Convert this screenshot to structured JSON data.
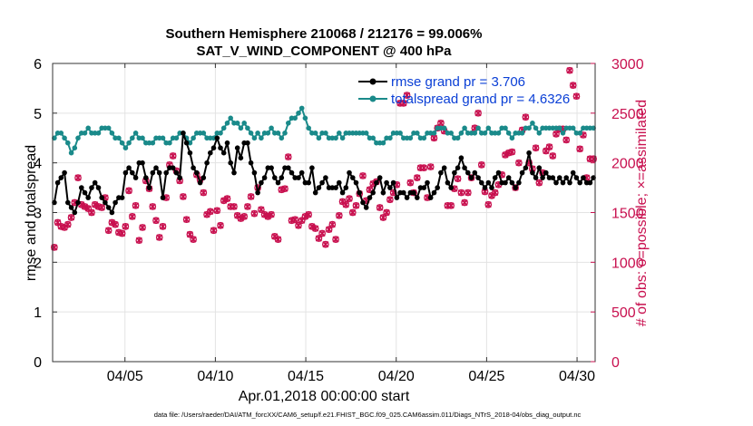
{
  "chart_data": {
    "type": "line",
    "title_line1": "Southern Hemisphere 210068 / 212176 = 99.006%",
    "title_line2": "SAT_V_WIND_COMPONENT @ 400 hPa",
    "xlabel": "Apr.01,2018 00:00:00 start",
    "ylabel_left": "rmse and totalspread",
    "ylabel_right": "# of obs: o=possible; ×=assimilated",
    "x_range_days": [
      1,
      31
    ],
    "left_ylim": [
      0,
      6
    ],
    "right_ylim": [
      0,
      3000
    ],
    "x_ticks": [
      {
        "day": 5,
        "label": "04/05"
      },
      {
        "day": 10,
        "label": "04/10"
      },
      {
        "day": 15,
        "label": "04/15"
      },
      {
        "day": 20,
        "label": "04/20"
      },
      {
        "day": 25,
        "label": "04/25"
      },
      {
        "day": 30,
        "label": "04/30"
      }
    ],
    "left_ticks": [
      "0",
      "1",
      "2",
      "3",
      "4",
      "5",
      "6"
    ],
    "right_ticks": [
      "0",
      "500",
      "1000",
      "1500",
      "2000",
      "2500",
      "3000"
    ],
    "series": [
      {
        "name": "rmse",
        "legend": "rmse grand pr = 3.706",
        "color": "#000000",
        "axis": "left",
        "values": [
          3.2,
          3.6,
          3.7,
          3.8,
          3.2,
          3.1,
          3.0,
          3.2,
          3.5,
          3.4,
          3.3,
          3.5,
          3.6,
          3.5,
          3.3,
          3.2,
          3.1,
          3.0,
          3.2,
          3.3,
          3.3,
          3.8,
          3.9,
          3.8,
          3.7,
          4.0,
          4.0,
          3.7,
          3.5,
          3.8,
          3.9,
          3.8,
          3.3,
          3.8,
          3.9,
          3.9,
          3.8,
          3.7,
          4.6,
          4.4,
          4.2,
          3.9,
          3.8,
          3.6,
          3.7,
          4.0,
          4.2,
          4.3,
          4.5,
          4.3,
          4.2,
          4.4,
          4.0,
          3.8,
          4.3,
          4.1,
          4.4,
          4.4,
          4.0,
          3.8,
          3.4,
          3.6,
          3.7,
          3.9,
          3.9,
          3.7,
          3.6,
          3.7,
          3.9,
          3.9,
          3.8,
          3.7,
          3.7,
          3.8,
          3.6,
          3.6,
          3.9,
          3.4,
          3.5,
          3.6,
          3.7,
          3.5,
          3.5,
          3.5,
          3.6,
          3.4,
          3.5,
          3.8,
          3.7,
          3.6,
          3.4,
          3.2,
          3.1,
          3.3,
          3.4,
          3.6,
          3.7,
          3.4,
          3.6,
          3.5,
          3.6,
          3.3,
          3.4,
          3.4,
          3.3,
          3.4,
          3.4,
          3.3,
          3.5,
          3.5,
          3.6,
          3.3,
          3.4,
          3.5,
          3.8,
          3.9,
          3.6,
          3.5,
          3.8,
          3.9,
          4.1,
          3.9,
          3.8,
          3.7,
          3.8,
          3.7,
          3.6,
          3.5,
          3.6,
          3.5,
          3.7,
          3.8,
          3.6,
          3.6,
          3.7,
          3.6,
          3.5,
          3.6,
          3.8,
          3.9,
          4.2,
          3.8,
          3.7,
          3.9,
          3.7,
          3.8,
          3.7,
          3.7,
          3.6,
          3.7,
          3.6,
          3.7,
          3.6,
          3.8,
          3.7,
          3.6,
          3.7,
          3.6,
          3.6,
          3.7
        ]
      },
      {
        "name": "totalspread",
        "legend": "totalspread grand pr = 4.6326",
        "color": "#1a8a8a",
        "axis": "left",
        "values": [
          4.5,
          4.6,
          4.6,
          4.5,
          4.4,
          4.2,
          4.3,
          4.5,
          4.6,
          4.6,
          4.7,
          4.6,
          4.6,
          4.6,
          4.7,
          4.7,
          4.7,
          4.6,
          4.5,
          4.5,
          4.4,
          4.3,
          4.4,
          4.5,
          4.6,
          4.5,
          4.5,
          4.4,
          4.4,
          4.4,
          4.5,
          4.5,
          4.5,
          4.4,
          4.4,
          4.5,
          4.5,
          4.6,
          4.6,
          4.5,
          4.4,
          4.5,
          4.6,
          4.6,
          4.6,
          4.5,
          4.5,
          4.5,
          4.6,
          4.6,
          4.7,
          4.8,
          4.9,
          4.8,
          4.8,
          4.7,
          4.8,
          4.7,
          4.6,
          4.5,
          4.6,
          4.5,
          4.6,
          4.6,
          4.7,
          4.6,
          4.6,
          4.5,
          4.6,
          4.8,
          4.9,
          4.9,
          5.0,
          5.1,
          4.9,
          4.7,
          4.6,
          4.6,
          4.5,
          4.6,
          4.6,
          4.5,
          4.5,
          4.5,
          4.6,
          4.5,
          4.6,
          4.6,
          4.6,
          4.6,
          4.6,
          4.6,
          4.6,
          4.5,
          4.5,
          4.4,
          4.4,
          4.4,
          4.5,
          4.5,
          4.6,
          4.6,
          4.6,
          4.5,
          4.5,
          4.5,
          4.6,
          4.6,
          4.5,
          4.5,
          4.6,
          4.6,
          4.6,
          4.7,
          4.7,
          4.7,
          4.6,
          4.6,
          4.5,
          4.5,
          4.6,
          4.7,
          4.6,
          4.6,
          4.6,
          4.7,
          4.6,
          4.6,
          4.7,
          4.6,
          4.6,
          4.6,
          4.7,
          4.7,
          4.6,
          4.5,
          4.6,
          4.6,
          4.6,
          4.7,
          4.7,
          4.8,
          4.7,
          4.6,
          4.7,
          4.7,
          4.7,
          4.7,
          4.7,
          4.7,
          4.6,
          4.7,
          4.7,
          4.7,
          4.6,
          4.6,
          4.7,
          4.7,
          4.7,
          4.7
        ]
      },
      {
        "name": "nposs",
        "color": "#c8104f",
        "axis": "right",
        "values": [
          1150,
          1400,
          1360,
          1350,
          1380,
          1450,
          1600,
          1850,
          1580,
          1560,
          1540,
          1500,
          1580,
          1560,
          1550,
          1650,
          1320,
          1400,
          1380,
          1300,
          1290,
          1360,
          1720,
          1460,
          1570,
          1220,
          1350,
          1820,
          1740,
          1560,
          1420,
          1250,
          1360,
          1650,
          1980,
          2070,
          1920,
          1820,
          1660,
          1430,
          1280,
          1230,
          1880,
          1830,
          1700,
          1480,
          1510,
          1320,
          1520,
          1370,
          1620,
          1640,
          1560,
          1560,
          1470,
          1440,
          1460,
          1560,
          1660,
          1490,
          1750,
          1530,
          1480,
          1460,
          1480,
          1260,
          1230,
          1730,
          1740,
          2060,
          1420,
          1430,
          1370,
          1420,
          1460,
          1480,
          1360,
          1340,
          1240,
          1290,
          1180,
          1330,
          1380,
          1230,
          1470,
          1610,
          1580,
          1640,
          1500,
          1570,
          1690,
          1870,
          1620,
          1730,
          1790,
          1810,
          1550,
          1450,
          1500,
          1630,
          1700,
          1780,
          2600,
          2600,
          2680,
          1800,
          1700,
          1850,
          1950,
          1950,
          1650,
          1960,
          2250,
          2350,
          2400,
          2320,
          1570,
          1570,
          1740,
          1840,
          1700,
          1600,
          1700,
          1850,
          2350,
          2500,
          1980,
          1710,
          1580,
          1670,
          1700,
          1780,
          1880,
          2080,
          2100,
          2110,
          1750,
          2000,
          2330,
          2460,
          2000,
          1940,
          2150,
          1800,
          1900,
          2120,
          2160,
          2070,
          2290,
          2340,
          2340,
          2230,
          2930,
          2780,
          2670,
          2140,
          2280,
          1850,
          2040,
          2040
        ]
      }
    ],
    "axis_color_right": "#c8104f",
    "grid": true,
    "legend_position": "top-right"
  },
  "footer": "data file: /Users/raeder/DAI/ATM_forcXX/CAM6_setup/f.e21.FHIST_BGC.f09_025.CAM6assim.011/Diags_NTrS_2018-04/obs_diag_output.nc"
}
